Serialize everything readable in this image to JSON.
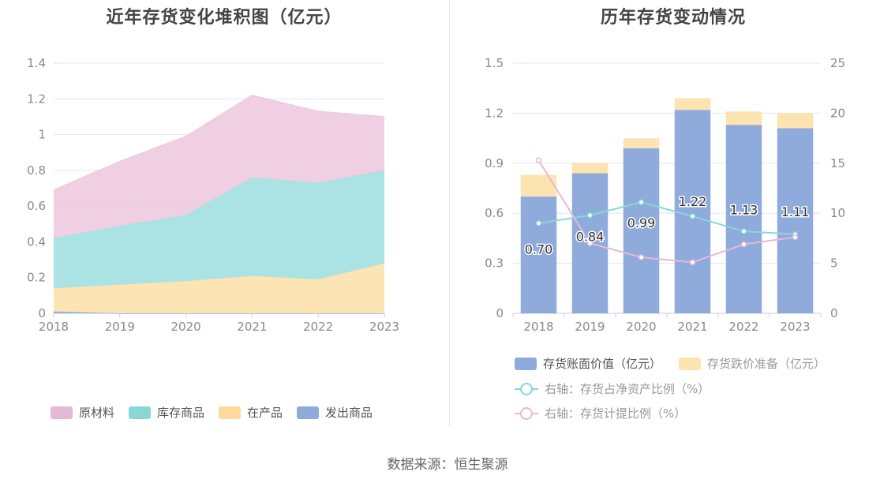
{
  "left_chart": {
    "title": "近年存货变化堆积图（亿元）",
    "chart_data": {
      "type": "area",
      "stacked": true,
      "categories": [
        "2018",
        "2019",
        "2020",
        "2021",
        "2022",
        "2023"
      ],
      "y_ticks": [
        "0",
        "0.2",
        "0.4",
        "0.6",
        "0.8",
        "1",
        "1.2",
        "1.4"
      ],
      "ylim": [
        0,
        1.4
      ],
      "grid": true,
      "legend_position": "bottom",
      "series": [
        {
          "name": "发出商品",
          "values": [
            0.01,
            0.0,
            0.0,
            0.0,
            0.0,
            0.0
          ],
          "color": "#8fabdc"
        },
        {
          "name": "在产品",
          "values": [
            0.13,
            0.16,
            0.18,
            0.21,
            0.19,
            0.28
          ],
          "color": "#fde3b0"
        },
        {
          "name": "库存商品",
          "values": [
            0.28,
            0.33,
            0.37,
            0.55,
            0.54,
            0.52
          ],
          "color": "#a7e2e3"
        },
        {
          "name": "原材料",
          "values": [
            0.27,
            0.36,
            0.44,
            0.46,
            0.4,
            0.3
          ],
          "color": "#eeccdf"
        }
      ],
      "legend_order": [
        "原材料",
        "库存商品",
        "在产品",
        "发出商品"
      ],
      "legend_colors": [
        "#e5b8d6",
        "#88d6d6",
        "#fdd99a",
        "#8fabdc"
      ]
    }
  },
  "right_chart": {
    "title": "历年存货变动情况",
    "chart_data": {
      "type": "bar",
      "stacked": true,
      "categories": [
        "2018",
        "2019",
        "2020",
        "2021",
        "2022",
        "2023"
      ],
      "y_left_ticks": [
        "0",
        "0.3",
        "0.6",
        "0.9",
        "1.2",
        "1.5"
      ],
      "y_right_ticks": [
        "0",
        "5",
        "10",
        "15",
        "20",
        "25"
      ],
      "ylim_left": [
        0,
        1.5
      ],
      "ylim_right": [
        0,
        25
      ],
      "grid": true,
      "legend_position": "bottom",
      "bars": [
        {
          "name": "存货账面价值（亿元）",
          "values": [
            0.7,
            0.84,
            0.99,
            1.22,
            1.13,
            1.11
          ],
          "labels": [
            "0.70",
            "0.84",
            "0.99",
            "1.22",
            "1.13",
            "1.11"
          ],
          "color": "#8fabdc"
        },
        {
          "name": "存货跌价准备（亿元）",
          "values": [
            0.13,
            0.06,
            0.06,
            0.07,
            0.08,
            0.09
          ],
          "color": "#fde3b0"
        }
      ],
      "lines": [
        {
          "name": "右轴：存货占净资产比例（%）",
          "values": [
            9.0,
            9.8,
            11.1,
            9.7,
            8.2,
            7.9
          ],
          "color": "#88d6d6"
        },
        {
          "name": "右轴：存货计提比例（%）",
          "values": [
            15.3,
            7.0,
            5.6,
            5.1,
            6.9,
            7.6
          ],
          "color": "#e5b8d6"
        }
      ]
    }
  },
  "source": "数据来源：恒生聚源"
}
